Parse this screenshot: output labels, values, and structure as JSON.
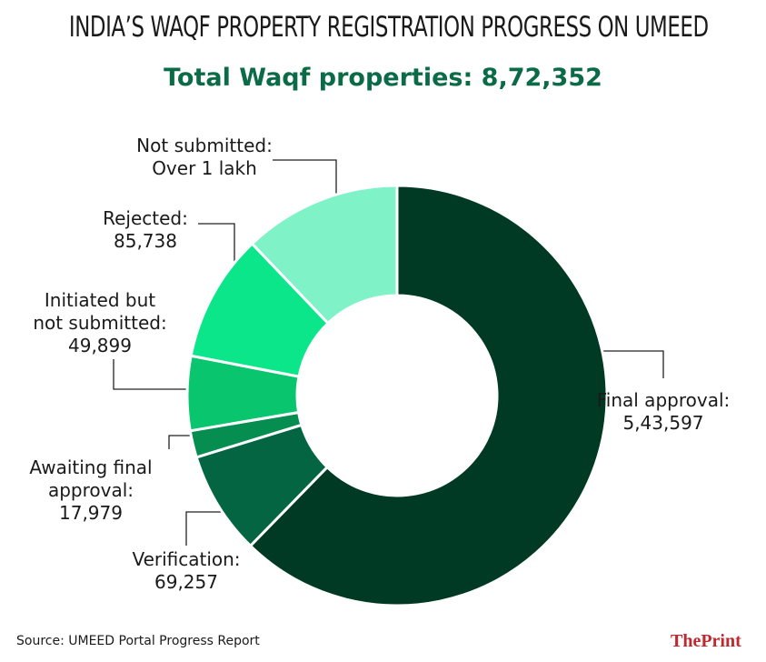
{
  "chart_data": {
    "type": "donut",
    "title": "INDIA’S WAQF PROPERTY REGISTRATION PROGRESS ON UMEED",
    "subtitle": "Total Waqf properties: 8,72,352",
    "categories": [
      "Final approval:",
      "Verification:",
      "Awaiting final approval:",
      "Initiated but not submitted:",
      "Rejected:",
      "Not submitted:"
    ],
    "values": [
      543597,
      69257,
      17979,
      49899,
      85738,
      105882
    ],
    "value_labels": [
      "5,43,597",
      "69,257",
      "17,979",
      "49,899",
      "85,738",
      "Over 1 lakh"
    ],
    "colors": [
      "#003a24",
      "#036541",
      "#068e50",
      "#08c56e",
      "#0be68a",
      "#7ff2c8"
    ],
    "source": "Source: UMEED Portal Progress Report",
    "logo": "ThePrint"
  }
}
